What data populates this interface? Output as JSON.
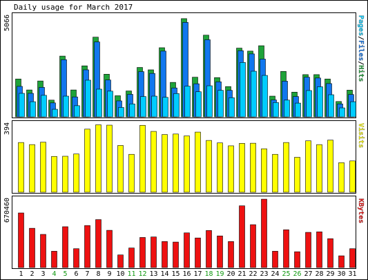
{
  "chart_data": {
    "type": "bar",
    "title": "Daily usage for March 2017",
    "categories": [
      "1",
      "2",
      "3",
      "4",
      "5",
      "6",
      "7",
      "8",
      "9",
      "10",
      "11",
      "12",
      "13",
      "14",
      "15",
      "16",
      "17",
      "18",
      "19",
      "20",
      "21",
      "22",
      "23",
      "24",
      "25",
      "26",
      "27",
      "28",
      "29",
      "30",
      "31"
    ],
    "weekend_days": [
      "4",
      "5",
      "11",
      "12",
      "18",
      "19",
      "25",
      "26"
    ],
    "colors": {
      "hits": "#1fa33a",
      "files": "#1177ee",
      "pages": "#00ccff",
      "visits": "#ffff00",
      "kbytes": "#ee1111",
      "weekday_label": "#000000",
      "weekend_label": "#119911"
    },
    "panels": [
      {
        "name": "usage",
        "ymax_label": "5066",
        "ymax": 5066,
        "right_label": [
          "Pages",
          "/",
          "Files",
          "/",
          "Hits"
        ],
        "series": [
          {
            "name": "Hits",
            "values": [
              1900,
              1350,
              1800,
              840,
              3050,
              1350,
              2560,
              4000,
              2140,
              1060,
              1300,
              2480,
              2360,
              3470,
              1730,
              4930,
              1990,
              4100,
              1970,
              1520,
              3450,
              3300,
              3570,
              1040,
              2280,
              1240,
              2120,
              2120,
              1900,
              770,
              1340
            ]
          },
          {
            "name": "Files",
            "values": [
              1530,
              1180,
              1480,
              700,
              2870,
              1000,
              2360,
              3760,
              1850,
              800,
              1130,
              2270,
              2180,
              3300,
              1450,
              4740,
              1660,
              3870,
              1760,
              1330,
              3320,
              3160,
              2900,
              850,
              1790,
              1020,
              1990,
              1950,
              1670,
              650,
              1120
            ]
          },
          {
            "name": "Pages",
            "values": [
              1180,
              760,
              1080,
              380,
              1040,
              560,
              1840,
              1390,
              1290,
              470,
              650,
              1020,
              1040,
              980,
              1170,
              1540,
              1260,
              1560,
              1330,
              960,
              2730,
              2290,
              2080,
              720,
              840,
              690,
              1320,
              1510,
              1110,
              450,
              760
            ]
          }
        ]
      },
      {
        "name": "visits",
        "ymax_label": "394",
        "ymax": 394,
        "right_label": [
          "Visits"
        ],
        "series": [
          {
            "name": "Visits",
            "values": [
              286,
              274,
              288,
              206,
              207,
              220,
              363,
              388,
              386,
              269,
              218,
              385,
              350,
              332,
              335,
              324,
              346,
              298,
              284,
              267,
              281,
              282,
              250,
              218,
              286,
              201,
              296,
              274,
              300,
              170,
              180
            ]
          }
        ]
      },
      {
        "name": "kbytes",
        "ymax_label": "670460",
        "ymax": 670460,
        "right_label": [
          "KBytes"
        ],
        "series": [
          {
            "name": "KBytes",
            "values": [
              535000,
              385000,
              325000,
              160000,
              400000,
              185000,
              412000,
              470000,
              365000,
              124000,
              192000,
              295000,
              300000,
              255000,
              250000,
              340000,
              290000,
              363000,
              310000,
              255000,
              605000,
              420000,
              670000,
              160000,
              370000,
              155000,
              345000,
              350000,
              283000,
              115000,
              185000
            ]
          }
        ]
      }
    ]
  }
}
